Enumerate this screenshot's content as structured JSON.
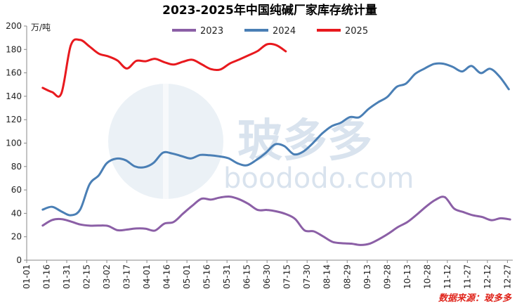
{
  "chart_data": {
    "type": "line",
    "title": "2023-2025年中国纯碱厂家库存统计量",
    "ylabel": "万/吨",
    "ylim": [
      0,
      200
    ],
    "yticks": [
      0,
      20,
      40,
      60,
      80,
      100,
      120,
      140,
      160,
      180,
      200
    ],
    "x_tick_labels": [
      "01-01",
      "01-16",
      "01-31",
      "02-15",
      "03-02",
      "03-17",
      "04-01",
      "04-16",
      "05-01",
      "05-16",
      "05-31",
      "06-15",
      "06-30",
      "07-15",
      "07-30",
      "08-14",
      "08-29",
      "09-13",
      "09-28",
      "10-13",
      "10-28",
      "11-12",
      "11-27",
      "12-12",
      "12-27"
    ],
    "x_domain": [
      "01-01",
      "12-31"
    ],
    "legend": "top-center",
    "grid": false,
    "source_text": "数据来源：玻多多",
    "watermark_text": "玻多多",
    "watermark_url": "boododo.com",
    "series": [
      {
        "name": "2023",
        "color": "#8b5fa6",
        "points": [
          [
            "01-13",
            29.6
          ],
          [
            "01-20",
            34.3
          ],
          [
            "01-27",
            35.1
          ],
          [
            "02-03",
            33.1
          ],
          [
            "02-10",
            30.5
          ],
          [
            "02-17",
            29.5
          ],
          [
            "02-24",
            29.6
          ],
          [
            "03-03",
            29.2
          ],
          [
            "03-10",
            25.6
          ],
          [
            "03-17",
            26.1
          ],
          [
            "03-24",
            27.1
          ],
          [
            "03-31",
            26.9
          ],
          [
            "04-07",
            25.3
          ],
          [
            "04-14",
            31.2
          ],
          [
            "04-21",
            32.6
          ],
          [
            "04-28",
            39.7
          ],
          [
            "05-05",
            46.5
          ],
          [
            "05-12",
            52.5
          ],
          [
            "05-19",
            51.8
          ],
          [
            "05-26",
            53.6
          ],
          [
            "06-02",
            54.3
          ],
          [
            "06-09",
            52.1
          ],
          [
            "06-16",
            48.1
          ],
          [
            "06-23",
            42.9
          ],
          [
            "06-30",
            42.9
          ],
          [
            "07-07",
            41.7
          ],
          [
            "07-14",
            39.4
          ],
          [
            "07-21",
            35.2
          ],
          [
            "07-28",
            25.5
          ],
          [
            "08-04",
            24.6
          ],
          [
            "08-11",
            20.3
          ],
          [
            "08-18",
            15.6
          ],
          [
            "08-25",
            14.5
          ],
          [
            "09-01",
            14.1
          ],
          [
            "09-08",
            13.0
          ],
          [
            "09-15",
            14.2
          ],
          [
            "09-22",
            18.1
          ],
          [
            "09-29",
            22.8
          ],
          [
            "10-06",
            28.3
          ],
          [
            "10-13",
            32.5
          ],
          [
            "10-20",
            38.8
          ],
          [
            "10-27",
            45.7
          ],
          [
            "11-03",
            51.5
          ],
          [
            "11-10",
            53.9
          ],
          [
            "11-17",
            44.1
          ],
          [
            "11-24",
            41.1
          ],
          [
            "12-01",
            38.4
          ],
          [
            "12-08",
            36.9
          ],
          [
            "12-15",
            34.2
          ],
          [
            "12-22",
            35.8
          ],
          [
            "12-29",
            34.8
          ]
        ]
      },
      {
        "name": "2024",
        "color": "#4a7fb5",
        "points": [
          [
            "01-13",
            43.2
          ],
          [
            "01-20",
            45.6
          ],
          [
            "01-27",
            41.6
          ],
          [
            "02-03",
            38.4
          ],
          [
            "02-10",
            43.1
          ],
          [
            "02-17",
            64.7
          ],
          [
            "02-24",
            72.5
          ],
          [
            "03-02",
            82.9
          ],
          [
            "03-09",
            86.7
          ],
          [
            "03-16",
            85.4
          ],
          [
            "03-23",
            80.1
          ],
          [
            "03-30",
            79.4
          ],
          [
            "04-06",
            83.1
          ],
          [
            "04-13",
            91.8
          ],
          [
            "04-20",
            91.1
          ],
          [
            "04-27",
            88.9
          ],
          [
            "05-04",
            86.9
          ],
          [
            "05-11",
            89.9
          ],
          [
            "05-18",
            89.6
          ],
          [
            "05-25",
            88.7
          ],
          [
            "06-01",
            87.1
          ],
          [
            "06-08",
            82.7
          ],
          [
            "06-15",
            81.1
          ],
          [
            "06-22",
            85.6
          ],
          [
            "06-29",
            91.6
          ],
          [
            "07-06",
            98.9
          ],
          [
            "07-13",
            97.4
          ],
          [
            "07-20",
            90.5
          ],
          [
            "07-27",
            92.7
          ],
          [
            "08-03",
            99.6
          ],
          [
            "08-10",
            107.9
          ],
          [
            "08-17",
            114.2
          ],
          [
            "08-24",
            117.3
          ],
          [
            "08-31",
            122.2
          ],
          [
            "09-07",
            122.1
          ],
          [
            "09-14",
            129.2
          ],
          [
            "09-21",
            134.8
          ],
          [
            "09-28",
            139.4
          ],
          [
            "10-05",
            148.0
          ],
          [
            "10-12",
            150.8
          ],
          [
            "10-19",
            159.2
          ],
          [
            "10-26",
            163.7
          ],
          [
            "11-02",
            167.6
          ],
          [
            "11-09",
            167.8
          ],
          [
            "11-16",
            165.1
          ],
          [
            "11-23",
            161.2
          ],
          [
            "11-30",
            165.9
          ],
          [
            "12-07",
            159.8
          ],
          [
            "12-14",
            163.5
          ],
          [
            "12-21",
            156.9
          ],
          [
            "12-28",
            146.0
          ]
        ]
      },
      {
        "name": "2025",
        "color": "#e8191e",
        "points": [
          [
            "01-13",
            147.2
          ],
          [
            "01-20",
            143.6
          ],
          [
            "01-27",
            142.5
          ],
          [
            "02-03",
            183.3
          ],
          [
            "02-10",
            188.1
          ],
          [
            "02-17",
            182.5
          ],
          [
            "02-24",
            176.4
          ],
          [
            "03-03",
            174.1
          ],
          [
            "03-10",
            170.5
          ],
          [
            "03-17",
            163.7
          ],
          [
            "03-24",
            170.2
          ],
          [
            "03-31",
            169.9
          ],
          [
            "04-07",
            172.0
          ],
          [
            "04-14",
            169.1
          ],
          [
            "04-21",
            167.1
          ],
          [
            "04-28",
            169.5
          ],
          [
            "05-05",
            171.2
          ],
          [
            "05-12",
            167.3
          ],
          [
            "05-19",
            163.2
          ],
          [
            "05-26",
            162.9
          ],
          [
            "06-02",
            167.9
          ],
          [
            "06-09",
            171.3
          ],
          [
            "06-16",
            174.9
          ],
          [
            "06-23",
            178.7
          ],
          [
            "06-30",
            184.4
          ],
          [
            "07-07",
            183.6
          ],
          [
            "07-14",
            178.4
          ]
        ]
      }
    ]
  }
}
